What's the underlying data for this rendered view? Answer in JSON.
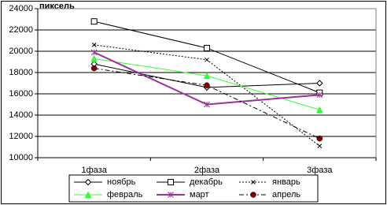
{
  "chart_data": {
    "type": "line",
    "y_label": "пиксель",
    "categories": [
      "1фаза",
      "2фаза",
      "3фаза"
    ],
    "series": [
      {
        "name": "ноябрь",
        "color": "#000000",
        "marker": "diamond",
        "marker_color": "#000000",
        "style": "solid",
        "width": 1,
        "values": [
          18800,
          16600,
          17000
        ]
      },
      {
        "name": "декабрь",
        "color": "#000000",
        "marker": "square",
        "marker_color": "#000000",
        "style": "solid",
        "width": 1,
        "values": [
          22800,
          20300,
          16100
        ]
      },
      {
        "name": "январь",
        "color": "#000000",
        "marker": "x",
        "marker_color": "#000000",
        "style": "dotted",
        "width": 1,
        "values": [
          20600,
          19200,
          11100
        ]
      },
      {
        "name": "февраль",
        "color": "#33ff33",
        "marker": "triangle",
        "marker_color": "#33ff33",
        "style": "solid",
        "width": 1,
        "values": [
          19300,
          17700,
          14500
        ]
      },
      {
        "name": "март",
        "color": "#993399",
        "marker": "asterisk",
        "marker_color": "#993399",
        "style": "solid",
        "width": 2,
        "values": [
          19900,
          15000,
          15900
        ]
      },
      {
        "name": "апрель",
        "color": "#000000",
        "marker": "circle",
        "marker_color": "#800000",
        "style": "dashdot",
        "width": 1,
        "values": [
          18400,
          16800,
          11800
        ]
      }
    ],
    "ylim": [
      10000,
      24000
    ],
    "yticks": [
      10000,
      12000,
      14000,
      16000,
      18000,
      20000,
      22000,
      24000
    ],
    "grid": true,
    "legend": "bottom"
  }
}
